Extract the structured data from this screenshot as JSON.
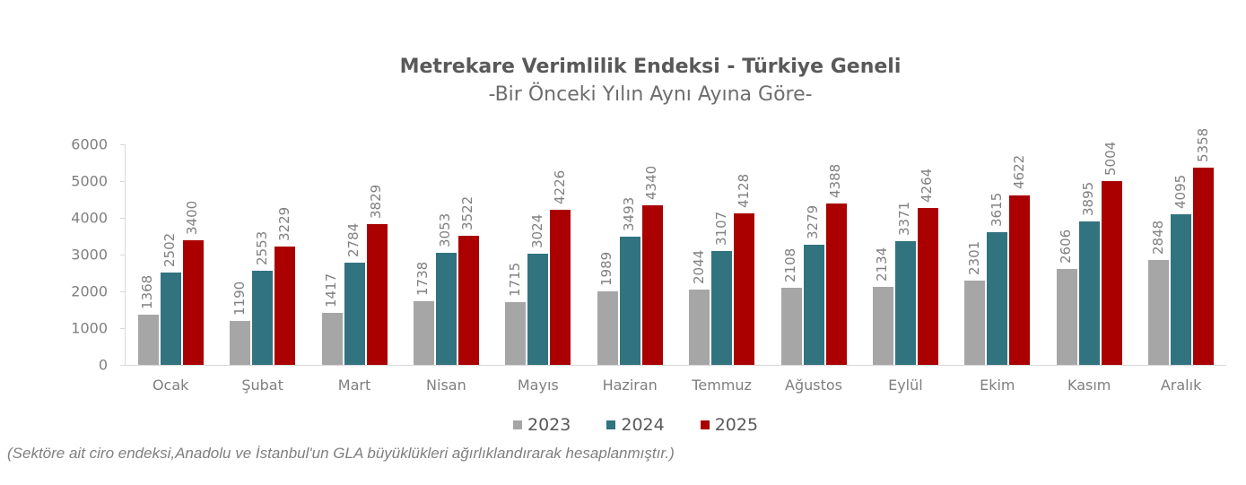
{
  "chart_data": {
    "type": "bar",
    "title": "Metrekare Verimlilik Endeksi - Türkiye Geneli",
    "subtitle": "-Bir Önceki Yılın Aynı Ayına Göre-",
    "xlabel": "",
    "ylabel": "",
    "ylim": [
      0,
      6000
    ],
    "yticks": [
      "0",
      "1000",
      "2000",
      "3000",
      "4000",
      "5000",
      "6000"
    ],
    "grid": false,
    "legend_position": "bottom",
    "categories": [
      "Ocak",
      "Şubat",
      "Mart",
      "Nisan",
      "Mayıs",
      "Haziran",
      "Temmuz",
      "Ağustos",
      "Eylül",
      "Ekim",
      "Kasım",
      "Aralık"
    ],
    "series": [
      {
        "name": "2023",
        "color": "#a6a6a6",
        "values": [
          1368,
          1190,
          1417,
          1738,
          1715,
          1989,
          2044,
          2108,
          2134,
          2301,
          2606,
          2848
        ]
      },
      {
        "name": "2024",
        "color": "#31737f",
        "values": [
          2502,
          2553,
          2784,
          3053,
          3024,
          3493,
          3107,
          3279,
          3371,
          3615,
          3895,
          4095
        ]
      },
      {
        "name": "2025",
        "color": "#aa0000",
        "values": [
          3400,
          3229,
          3829,
          3522,
          4226,
          4340,
          4128,
          4388,
          4264,
          4622,
          5004,
          5358
        ]
      }
    ],
    "data_labels": true,
    "footnote": "(Sektöre ait ciro endeksi,Anadolu ve İstanbul'un GLA büyüklükleri ağırlıklandırarak hesaplanmıştır.)"
  }
}
